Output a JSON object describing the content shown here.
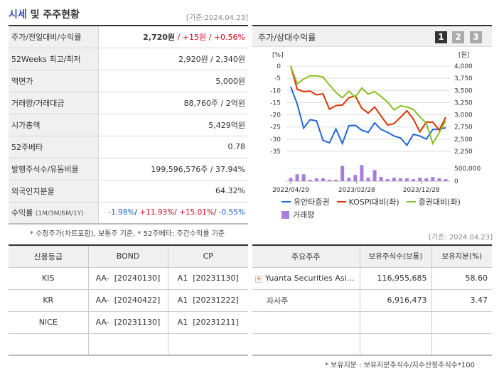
{
  "summary": {
    "title_highlight": "시세",
    "title_rest": " 및 주주현황",
    "date": "[기준:2024.04.23]",
    "rows": [
      {
        "label": "주가/전일대비/수익률",
        "price": "2,720원",
        "change": "+15원",
        "rate": "+0.56%"
      },
      {
        "label": "52Weeks 최고/최저",
        "value": "2,920원 / 2,340원"
      },
      {
        "label": "액면가",
        "value": "5,000원"
      },
      {
        "label": "거래량/거래대금",
        "value": "88,760주 / 2억원"
      },
      {
        "label": "시가총액",
        "value": "5,429억원"
      },
      {
        "label": "52주베타",
        "value": "0.78"
      },
      {
        "label": "발행주식수/유동비율",
        "value": "199,596,576주 / 37.94%"
      },
      {
        "label": "외국인지분율",
        "value": "64.32%"
      },
      {
        "label": "수익률",
        "label_sub": "(1M/3M/6M/1Y)",
        "r1m": "-1.98%",
        "r3m": "+11.93%",
        "r6m": "+15.01%",
        "r1y": "-0.55%"
      }
    ],
    "footnote": "* 수정주가(차트포함), 보통주 기준, * 52주베타: 주간수익률 기준"
  },
  "chart_panel": {
    "title": "주가/상대수익률",
    "pages": [
      "1",
      "2",
      "3"
    ],
    "active_page": "1"
  },
  "chart_data": {
    "type": "line",
    "left_axis": {
      "unit": "[%]",
      "ticks": [
        "0",
        "-5",
        "-10",
        "-15",
        "-20",
        "-25",
        "-30",
        "-35"
      ],
      "range": [
        -35,
        0
      ]
    },
    "right_axis": {
      "unit": "[원]",
      "ticks": [
        "4,000",
        "3,750",
        "3,500",
        "3,250",
        "3,000",
        "2,750",
        "2,500",
        "2,250"
      ],
      "range": [
        2250,
        4000
      ]
    },
    "volume_axis": {
      "ticks": [
        "500,000",
        "0"
      ],
      "range": [
        0,
        500000
      ]
    },
    "x_tick_labels": [
      "2022/04/29",
      "2023/02/28",
      "2023/12/28"
    ],
    "series": [
      {
        "name": "유안타증권",
        "axis": "right",
        "color": "#2266dd",
        "values": [
          3575,
          3225,
          2725,
          2900,
          2875,
          2475,
          2425,
          2710,
          2410,
          2775,
          2785,
          2685,
          2640,
          2835,
          2700,
          2640,
          2565,
          2525,
          2375,
          2600,
          2565,
          2500,
          2700,
          2700,
          2735
        ]
      },
      {
        "name": "KOSPI대비(좌)",
        "axis": "left",
        "color": "#dd3300",
        "values": [
          0,
          -9.5,
          -10.5,
          -10.3,
          -11.8,
          -11.4,
          -17.7,
          -16.2,
          -16,
          -13,
          -12.3,
          -17.3,
          -19.3,
          -16.8,
          -20.5,
          -24.2,
          -23.6,
          -21,
          -18.3,
          -21.8,
          -27,
          -23,
          -23,
          -26.3,
          -21
        ]
      },
      {
        "name": "증권대비(좌)",
        "axis": "left",
        "color": "#88c020",
        "values": [
          0,
          -7.3,
          -5.3,
          -4,
          -4,
          -4.5,
          -7.8,
          -10.8,
          -13,
          -10.3,
          -12.8,
          -9,
          -11.5,
          -10.5,
          -12.5,
          -14.8,
          -18,
          -16.3,
          -16.8,
          -17.8,
          -20.8,
          -23.5,
          -31.8,
          -27.3,
          -22.5
        ]
      }
    ],
    "volume": {
      "name": "거래량",
      "color": "#a87ddb",
      "values": [
        120000,
        270000,
        270000,
        55000,
        110000,
        110000,
        55000,
        55000,
        600000,
        135000,
        245000,
        630000,
        135000,
        435000,
        165000,
        80000,
        135000,
        110000,
        110000,
        80000,
        135000,
        110000,
        165000,
        110000,
        80000
      ]
    },
    "grid": true,
    "legend": "bottom"
  },
  "credit": {
    "headers": [
      "신용등급",
      "BOND",
      "CP"
    ],
    "rows": [
      [
        "KIS",
        "AA-  [20240130]",
        "A1  [20231130]"
      ],
      [
        "KR",
        "AA-  [20240422]",
        "A1  [20231222]"
      ],
      [
        "NICE",
        "AA-  [20231130]",
        "A1  [20231211]"
      ],
      [
        "",
        "",
        ""
      ]
    ]
  },
  "holders": {
    "date": "[기준: 2024.04.23]",
    "headers": [
      "주요주주",
      "보유주식수(보통)",
      "보유지분(%)"
    ],
    "rows": [
      [
        "Yuanta Securities Asi…",
        "116,955,685",
        "58.60"
      ],
      [
        "자사주",
        "6,916,473",
        "3.47"
      ],
      [
        "",
        "",
        ""
      ],
      [
        "",
        "",
        ""
      ]
    ],
    "footnote": "* 보유지분 : 보유지분주식수/지수산정주식수*100"
  }
}
